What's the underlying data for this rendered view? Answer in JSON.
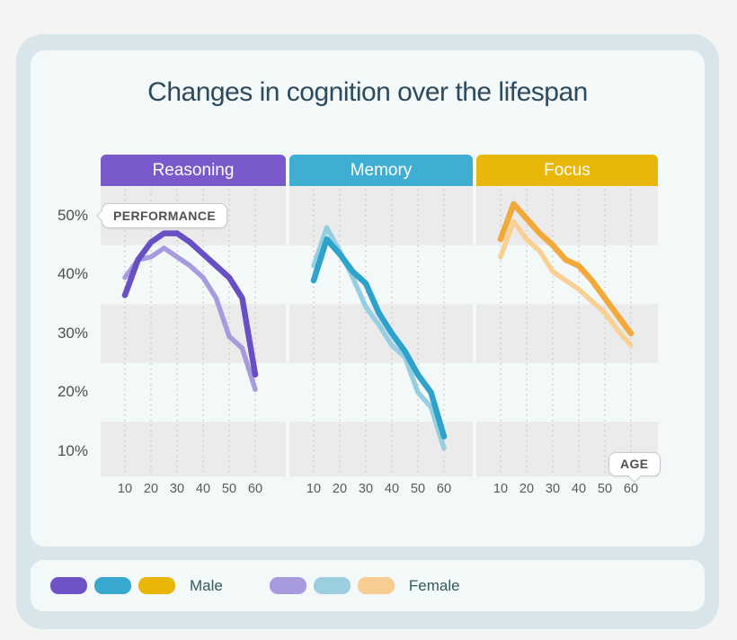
{
  "title": "Changes in cognition over the lifespan",
  "tooltips": {
    "performance": "PERFORMANCE",
    "age": "AGE"
  },
  "legend": {
    "male_label": "Male",
    "female_label": "Female",
    "male_colors": [
      "#6e52c6",
      "#38a9ce",
      "#e9b607"
    ],
    "female_colors": [
      "#a89ade",
      "#9bcfe0",
      "#f8cd92"
    ]
  },
  "colors": {
    "page_bg": "#f4f4f2",
    "frame_bg": "#d8e5eb",
    "card_bg": "#f3f8f9",
    "band_gray": "#ebebeb",
    "grid_dots": "#c9c5c2",
    "title_text": "#2d4a5f",
    "legend_text": "#325a60"
  },
  "chart_data": {
    "type": "line",
    "x": [
      10,
      15,
      20,
      25,
      30,
      35,
      40,
      45,
      50,
      55,
      60
    ],
    "x_ticks": [
      "10",
      "20",
      "30",
      "40",
      "50",
      "60"
    ],
    "y_ticks": [
      "50%",
      "40%",
      "30%",
      "20%",
      "10%"
    ],
    "ylabel": "PERFORMANCE",
    "xlabel": "AGE",
    "ylim": [
      5,
      55
    ],
    "grid": "vertical-dotted",
    "legend_position": "bottom",
    "panels": [
      {
        "label": "Reasoning",
        "tab_color": "#7a59cc",
        "series": [
          {
            "name": "Male",
            "color": "#6850c4",
            "values": [
              36.5,
              42.5,
              45.5,
              47,
              47,
              45.5,
              43.5,
              41.5,
              39.5,
              36,
              23
            ]
          },
          {
            "name": "Female",
            "color": "#a89ade",
            "values": [
              39.5,
              42.5,
              43,
              44.5,
              43,
              41.5,
              39.5,
              36,
              29.5,
              27.5,
              20.5
            ]
          }
        ]
      },
      {
        "label": "Memory",
        "tab_color": "#3eaed2",
        "series": [
          {
            "name": "Male",
            "color": "#2da2cb",
            "values": [
              39,
              46,
              43.5,
              40.5,
              38.5,
              33.5,
              30,
              27,
              23,
              20,
              12.5
            ]
          },
          {
            "name": "Female",
            "color": "#96cfe2",
            "values": [
              41.5,
              48,
              44,
              39.5,
              34.5,
              31.5,
              28,
              26,
              20,
              17.5,
              10.5
            ]
          }
        ]
      },
      {
        "label": "Focus",
        "tab_color": "#e8b709",
        "series": [
          {
            "name": "Male",
            "color": "#f2a93a",
            "values": [
              46,
              52,
              49.5,
              47,
              45,
              42.5,
              41.5,
              39,
              36,
              33,
              30
            ]
          },
          {
            "name": "Female",
            "color": "#f9d094",
            "values": [
              43,
              49,
              46,
              44,
              40.5,
              39,
              37.5,
              35.5,
              33.5,
              30.5,
              28
            ]
          }
        ]
      }
    ]
  }
}
